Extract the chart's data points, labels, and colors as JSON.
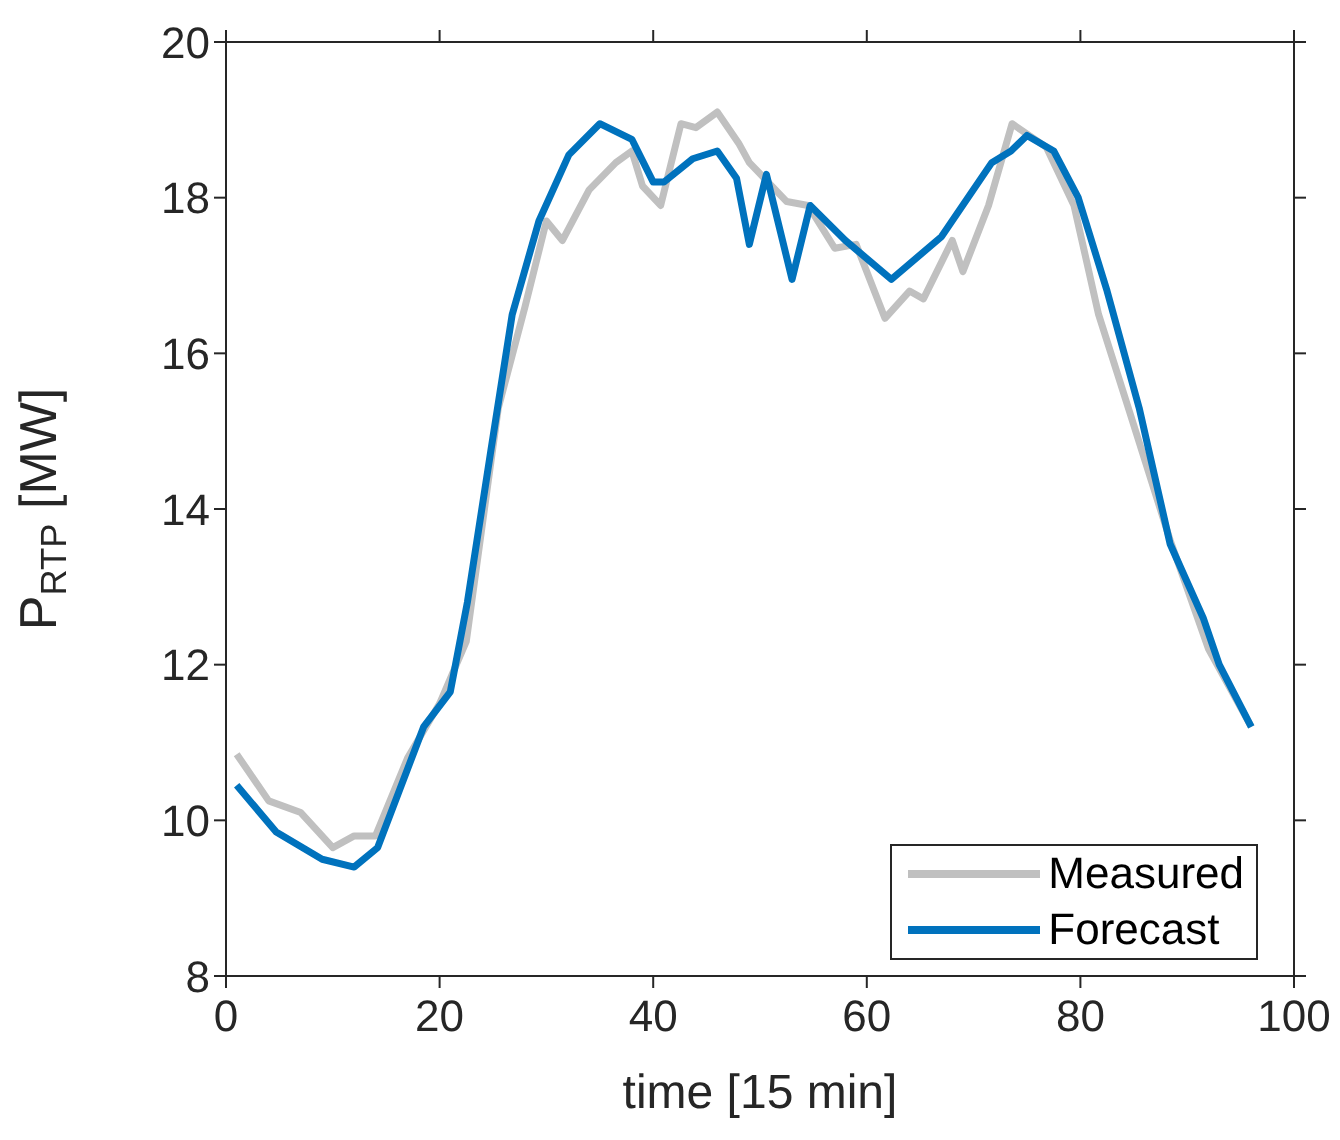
{
  "chart_data": {
    "type": "line",
    "xlabel": "time [15 min]",
    "ylabel": "P$_{RTP}$ [MW]",
    "xlim": [
      0,
      100
    ],
    "xticks": [
      0,
      20,
      40,
      60,
      80,
      100
    ],
    "ylim": [
      8,
      20
    ],
    "yticks": [
      8,
      10,
      12,
      14,
      16,
      18,
      20
    ],
    "legend": "bottom right",
    "marker": "none",
    "line_style": "solid",
    "series": [
      {
        "name": "Measured",
        "color": "#c0c0c0",
        "x": [
          1,
          4,
          7,
          10,
          12,
          14,
          17,
          20,
          22.5,
          25.5,
          28,
          30,
          31.5,
          34,
          36.5,
          38,
          39,
          40.7,
          42.6,
          44,
          46,
          48,
          49,
          52.5,
          54.5,
          57,
          59,
          61.7,
          64,
          65.3,
          68,
          69,
          71.4,
          73.6,
          76.8,
          79.4,
          81.7,
          84.6,
          88.4,
          92,
          96
        ],
        "values": [
          10.85,
          10.25,
          10.1,
          9.65,
          9.8,
          9.8,
          10.8,
          11.5,
          12.3,
          15.3,
          16.6,
          17.7,
          17.45,
          18.1,
          18.45,
          18.6,
          18.15,
          17.9,
          18.95,
          18.9,
          19.1,
          18.7,
          18.45,
          17.95,
          17.9,
          17.35,
          17.4,
          16.45,
          16.8,
          16.7,
          17.45,
          17.05,
          17.9,
          18.95,
          18.65,
          17.9,
          16.5,
          15.25,
          13.6,
          12.2,
          11.2
        ]
      },
      {
        "name": "Forecast",
        "color": "#0072bd",
        "x": [
          1,
          4.7,
          9,
          12,
          14.2,
          18.5,
          21,
          22.6,
          24.8,
          26.8,
          29.3,
          32.1,
          35,
          38,
          40,
          41,
          43.7,
          46,
          47.8,
          49,
          50.6,
          53,
          54.7,
          58,
          62.3,
          67,
          71.7,
          73.5,
          75,
          77.5,
          79.8,
          82.5,
          85.5,
          88.4,
          91.5,
          93,
          96
        ],
        "values": [
          10.45,
          9.85,
          9.5,
          9.4,
          9.65,
          11.2,
          11.65,
          12.8,
          14.75,
          16.5,
          17.7,
          18.55,
          18.95,
          18.75,
          18.2,
          18.2,
          18.5,
          18.6,
          18.25,
          17.4,
          18.3,
          16.95,
          17.9,
          17.45,
          16.95,
          17.5,
          18.45,
          18.6,
          18.8,
          18.6,
          18,
          16.8,
          15.3,
          13.55,
          12.6,
          12,
          11.2
        ]
      }
    ]
  }
}
